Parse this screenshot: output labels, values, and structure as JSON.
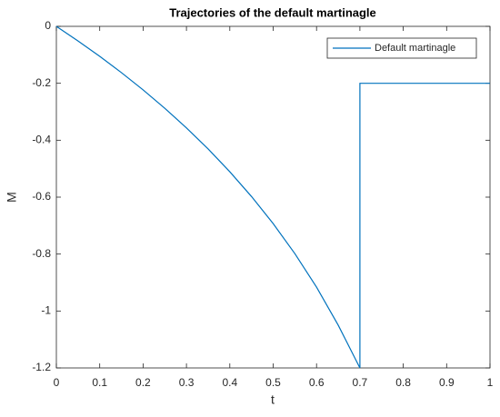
{
  "chart_data": {
    "type": "line",
    "title": "Trajectories of the default martinagle",
    "x_label": "t",
    "y_label": "M",
    "x": [
      0,
      0.05,
      0.1,
      0.15,
      0.2,
      0.25,
      0.3,
      0.35,
      0.4,
      0.45,
      0.5,
      0.55,
      0.6,
      0.65,
      0.7,
      0.7,
      1
    ],
    "series": [
      {
        "name": "Default martinagle",
        "color": "#0072bd",
        "values": [
          0,
          -0.0513,
          -0.1054,
          -0.1625,
          -0.2231,
          -0.2877,
          -0.3567,
          -0.4308,
          -0.5108,
          -0.5978,
          -0.6931,
          -0.7985,
          -0.9163,
          -1.0498,
          -1.2,
          -0.2,
          -0.2
        ]
      }
    ],
    "xlim": [
      0,
      1
    ],
    "xticks": [
      0,
      0.1,
      0.2,
      0.3,
      0.4,
      0.5,
      0.6,
      0.7,
      0.8,
      0.9,
      1
    ],
    "ylim": [
      -1.2,
      0
    ],
    "yticks": [
      -1.2,
      -1,
      -0.8,
      -0.6,
      -0.4,
      -0.2,
      0
    ],
    "grid": false,
    "legend": "top-right"
  }
}
